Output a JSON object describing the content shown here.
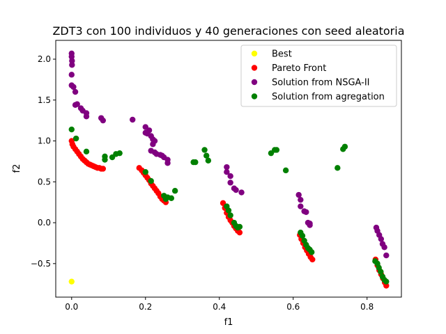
{
  "chart_data": {
    "type": "scatter",
    "title": "ZDT3 con 100 individuos y 40 generaciones con seed aleatoria",
    "xlabel": "f1",
    "ylabel": "f2",
    "xlim": [
      -0.043,
      0.893
    ],
    "ylim": [
      -0.91,
      2.23
    ],
    "xticks": [
      0.0,
      0.2,
      0.4,
      0.6,
      0.8
    ],
    "xtick_labels": [
      "0.0",
      "0.2",
      "0.4",
      "0.6",
      "0.8"
    ],
    "yticks": [
      -0.5,
      0.0,
      0.5,
      1.0,
      1.5,
      2.0
    ],
    "ytick_labels": [
      "−0.5",
      "0.0",
      "0.5",
      "1.0",
      "1.5",
      "2.0"
    ],
    "grid": false,
    "legend_position": "top-right",
    "series": [
      {
        "name": "Best",
        "color": "#ffff00",
        "points": [
          [
            0.0,
            -0.72
          ]
        ]
      },
      {
        "name": "Pareto Front",
        "color": "#ff0000",
        "points": [
          [
            0.0,
            1.0
          ],
          [
            0.002,
            0.96
          ],
          [
            0.005,
            0.93
          ],
          [
            0.01,
            0.9
          ],
          [
            0.015,
            0.87
          ],
          [
            0.02,
            0.84
          ],
          [
            0.025,
            0.81
          ],
          [
            0.03,
            0.78
          ],
          [
            0.035,
            0.76
          ],
          [
            0.04,
            0.74
          ],
          [
            0.045,
            0.72
          ],
          [
            0.05,
            0.71
          ],
          [
            0.055,
            0.7
          ],
          [
            0.06,
            0.69
          ],
          [
            0.065,
            0.68
          ],
          [
            0.07,
            0.67
          ],
          [
            0.075,
            0.67
          ],
          [
            0.08,
            0.66
          ],
          [
            0.085,
            0.66
          ],
          [
            0.183,
            0.67
          ],
          [
            0.19,
            0.64
          ],
          [
            0.195,
            0.61
          ],
          [
            0.2,
            0.58
          ],
          [
            0.205,
            0.55
          ],
          [
            0.21,
            0.52
          ],
          [
            0.215,
            0.48
          ],
          [
            0.22,
            0.45
          ],
          [
            0.225,
            0.42
          ],
          [
            0.23,
            0.39
          ],
          [
            0.235,
            0.36
          ],
          [
            0.24,
            0.32
          ],
          [
            0.245,
            0.29
          ],
          [
            0.25,
            0.27
          ],
          [
            0.255,
            0.25
          ],
          [
            0.41,
            0.24
          ],
          [
            0.415,
            0.18
          ],
          [
            0.42,
            0.12
          ],
          [
            0.425,
            0.07
          ],
          [
            0.43,
            0.03
          ],
          [
            0.435,
            0.0
          ],
          [
            0.44,
            -0.04
          ],
          [
            0.445,
            -0.07
          ],
          [
            0.45,
            -0.1
          ],
          [
            0.455,
            -0.12
          ],
          [
            0.618,
            -0.15
          ],
          [
            0.622,
            -0.2
          ],
          [
            0.627,
            -0.25
          ],
          [
            0.632,
            -0.3
          ],
          [
            0.637,
            -0.34
          ],
          [
            0.642,
            -0.38
          ],
          [
            0.647,
            -0.42
          ],
          [
            0.652,
            -0.45
          ],
          [
            0.823,
            -0.45
          ],
          [
            0.828,
            -0.52
          ],
          [
            0.833,
            -0.58
          ],
          [
            0.838,
            -0.63
          ],
          [
            0.843,
            -0.68
          ],
          [
            0.848,
            -0.73
          ],
          [
            0.852,
            -0.77
          ]
        ]
      },
      {
        "name": "Solution from NSGA-II",
        "color": "#800080",
        "points": [
          [
            0.0,
            2.07
          ],
          [
            0.0,
            2.03
          ],
          [
            0.001,
            1.98
          ],
          [
            0.001,
            1.93
          ],
          [
            0.0,
            1.81
          ],
          [
            0.0,
            1.68
          ],
          [
            0.005,
            1.66
          ],
          [
            0.01,
            1.6
          ],
          [
            0.01,
            1.44
          ],
          [
            0.015,
            1.45
          ],
          [
            0.025,
            1.4
          ],
          [
            0.03,
            1.37
          ],
          [
            0.04,
            1.34
          ],
          [
            0.04,
            1.3
          ],
          [
            0.08,
            1.28
          ],
          [
            0.085,
            1.25
          ],
          [
            0.165,
            1.26
          ],
          [
            0.2,
            1.17
          ],
          [
            0.2,
            1.1
          ],
          [
            0.205,
            1.09
          ],
          [
            0.21,
            1.13
          ],
          [
            0.215,
            1.06
          ],
          [
            0.22,
            1.02
          ],
          [
            0.225,
            1.0
          ],
          [
            0.22,
            0.96
          ],
          [
            0.215,
            0.88
          ],
          [
            0.225,
            0.86
          ],
          [
            0.23,
            0.84
          ],
          [
            0.24,
            0.83
          ],
          [
            0.245,
            0.82
          ],
          [
            0.25,
            0.8
          ],
          [
            0.26,
            0.77
          ],
          [
            0.26,
            0.73
          ],
          [
            0.42,
            0.68
          ],
          [
            0.42,
            0.62
          ],
          [
            0.43,
            0.57
          ],
          [
            0.43,
            0.49
          ],
          [
            0.44,
            0.42
          ],
          [
            0.445,
            0.4
          ],
          [
            0.46,
            0.37
          ],
          [
            0.615,
            0.34
          ],
          [
            0.62,
            0.28
          ],
          [
            0.62,
            0.2
          ],
          [
            0.63,
            0.14
          ],
          [
            0.635,
            0.13
          ],
          [
            0.64,
            0.0
          ],
          [
            0.645,
            -0.01
          ],
          [
            0.645,
            -0.03
          ],
          [
            0.825,
            -0.06
          ],
          [
            0.828,
            -0.1
          ],
          [
            0.833,
            -0.15
          ],
          [
            0.838,
            -0.2
          ],
          [
            0.842,
            -0.26
          ],
          [
            0.847,
            -0.3
          ],
          [
            0.852,
            -0.4
          ]
        ]
      },
      {
        "name": "Solution from agregation",
        "color": "#008000",
        "points": [
          [
            0.0,
            1.14
          ],
          [
            0.012,
            1.03
          ],
          [
            0.04,
            0.87
          ],
          [
            0.09,
            0.81
          ],
          [
            0.09,
            0.77
          ],
          [
            0.11,
            0.8
          ],
          [
            0.12,
            0.84
          ],
          [
            0.13,
            0.85
          ],
          [
            0.2,
            0.62
          ],
          [
            0.215,
            0.51
          ],
          [
            0.25,
            0.33
          ],
          [
            0.26,
            0.31
          ],
          [
            0.255,
            0.29
          ],
          [
            0.27,
            0.3
          ],
          [
            0.28,
            0.39
          ],
          [
            0.33,
            0.74
          ],
          [
            0.335,
            0.74
          ],
          [
            0.36,
            0.89
          ],
          [
            0.365,
            0.82
          ],
          [
            0.37,
            0.76
          ],
          [
            0.42,
            0.2
          ],
          [
            0.425,
            0.15
          ],
          [
            0.43,
            0.09
          ],
          [
            0.44,
            0.0
          ],
          [
            0.445,
            -0.04
          ],
          [
            0.45,
            -0.06
          ],
          [
            0.455,
            -0.05
          ],
          [
            0.54,
            0.85
          ],
          [
            0.55,
            0.89
          ],
          [
            0.555,
            0.89
          ],
          [
            0.58,
            0.64
          ],
          [
            0.62,
            -0.12
          ],
          [
            0.625,
            -0.16
          ],
          [
            0.63,
            -0.22
          ],
          [
            0.635,
            -0.27
          ],
          [
            0.64,
            -0.31
          ],
          [
            0.645,
            -0.33
          ],
          [
            0.65,
            -0.36
          ],
          [
            0.72,
            0.67
          ],
          [
            0.735,
            0.9
          ],
          [
            0.74,
            0.93
          ],
          [
            0.822,
            -0.47
          ],
          [
            0.828,
            -0.5
          ],
          [
            0.832,
            -0.55
          ],
          [
            0.837,
            -0.6
          ],
          [
            0.842,
            -0.66
          ],
          [
            0.847,
            -0.7
          ],
          [
            0.852,
            -0.72
          ]
        ]
      }
    ]
  }
}
